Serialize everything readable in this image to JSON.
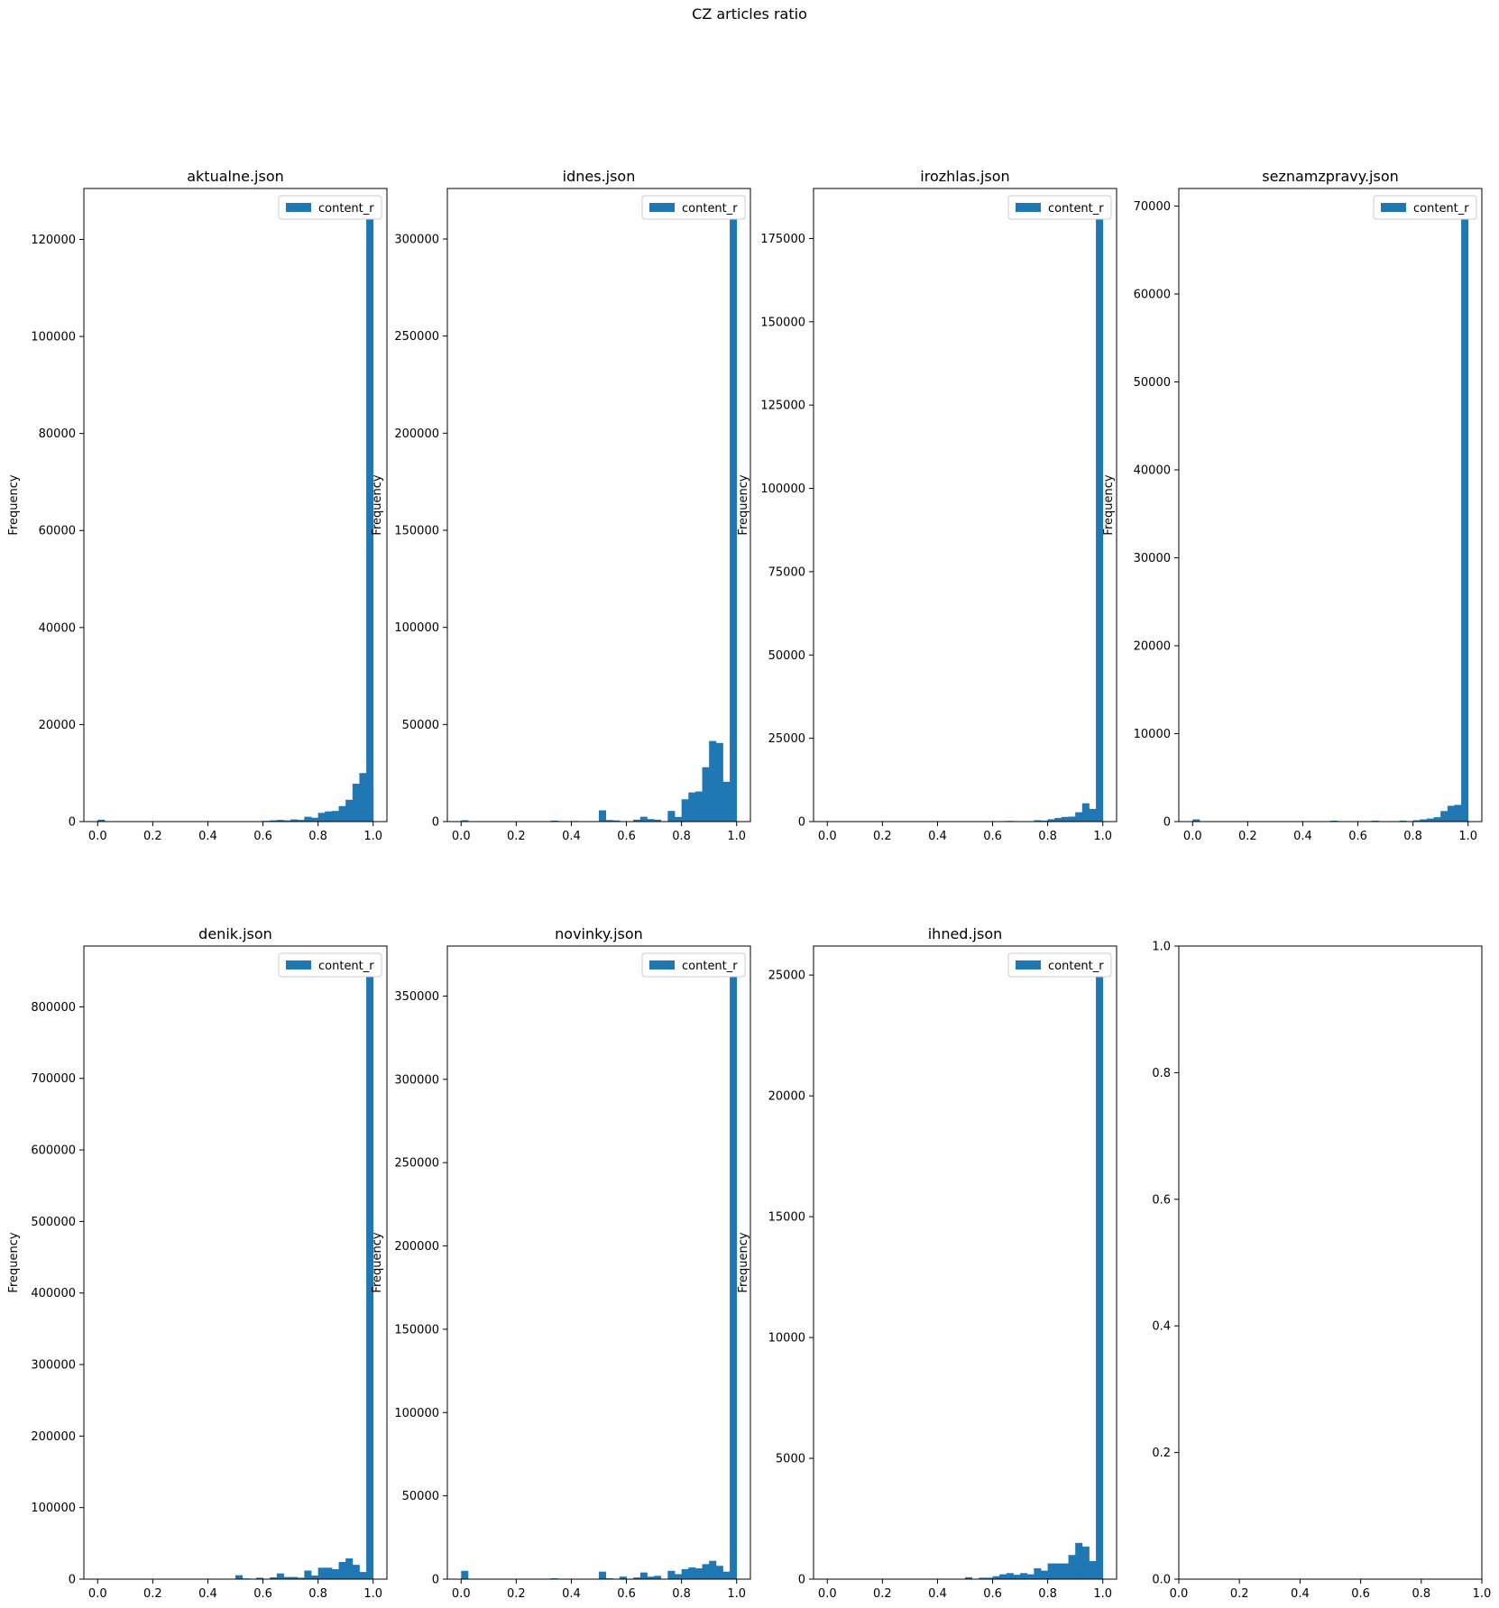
{
  "figure": {
    "title": "CZ articles ratio"
  },
  "colors": {
    "bar": "#1f77b4"
  },
  "chart_data": [
    {
      "type": "bar",
      "title": "aktualne.json",
      "ylabel": "Frequency",
      "legend": "content_r",
      "legend_placement": "top-right",
      "xlim": [
        -0.05,
        1.05
      ],
      "ylim": [
        0,
        130500
      ],
      "xticks": [
        0.0,
        0.2,
        0.4,
        0.6,
        0.8,
        1.0
      ],
      "xtick_labels": [
        "0.0",
        "0.2",
        "0.4",
        "0.6",
        "0.8",
        "1.0"
      ],
      "yticks": [
        0,
        20000,
        40000,
        60000,
        80000,
        100000,
        120000
      ],
      "ytick_labels": [
        "0",
        "20000",
        "40000",
        "60000",
        "80000",
        "100000",
        "120000"
      ],
      "bins": [
        [
          0.0,
          400
        ],
        [
          0.6,
          150
        ],
        [
          0.625,
          250
        ],
        [
          0.65,
          350
        ],
        [
          0.675,
          250
        ],
        [
          0.7,
          450
        ],
        [
          0.725,
          350
        ],
        [
          0.75,
          1000
        ],
        [
          0.775,
          800
        ],
        [
          0.8,
          1800
        ],
        [
          0.825,
          2100
        ],
        [
          0.85,
          2200
        ],
        [
          0.875,
          3200
        ],
        [
          0.9,
          4500
        ],
        [
          0.925,
          7800
        ],
        [
          0.95,
          10000
        ],
        [
          0.975,
          7500
        ],
        [
          0.975,
          125000
        ]
      ]
    },
    {
      "type": "bar",
      "title": "idnes.json",
      "ylabel": "Frequency",
      "legend": "content_r",
      "legend_placement": "top-right",
      "xlim": [
        -0.05,
        1.05
      ],
      "ylim": [
        0,
        326000
      ],
      "xticks": [
        0.0,
        0.2,
        0.4,
        0.6,
        0.8,
        1.0
      ],
      "xtick_labels": [
        "0.0",
        "0.2",
        "0.4",
        "0.6",
        "0.8",
        "1.0"
      ],
      "yticks": [
        0,
        50000,
        100000,
        150000,
        200000,
        250000,
        300000
      ],
      "ytick_labels": [
        "0",
        "50000",
        "100000",
        "150000",
        "200000",
        "250000",
        "300000"
      ],
      "bins": [
        [
          0.0,
          700
        ],
        [
          0.325,
          500
        ],
        [
          0.4,
          300
        ],
        [
          0.5,
          5800
        ],
        [
          0.525,
          800
        ],
        [
          0.55,
          600
        ],
        [
          0.625,
          1000
        ],
        [
          0.65,
          2500
        ],
        [
          0.675,
          1300
        ],
        [
          0.7,
          1000
        ],
        [
          0.75,
          5500
        ],
        [
          0.775,
          2400
        ],
        [
          0.8,
          11500
        ],
        [
          0.825,
          15000
        ],
        [
          0.85,
          15500
        ],
        [
          0.875,
          28000
        ],
        [
          0.9,
          41500
        ],
        [
          0.925,
          40500
        ],
        [
          0.95,
          20500
        ],
        [
          0.975,
          311000
        ]
      ]
    },
    {
      "type": "bar",
      "title": "irozhlas.json",
      "ylabel": "Frequency",
      "legend": "content_r",
      "legend_placement": "top-right",
      "xlim": [
        -0.05,
        1.05
      ],
      "ylim": [
        0,
        190000
      ],
      "xticks": [
        0.0,
        0.2,
        0.4,
        0.6,
        0.8,
        1.0
      ],
      "xtick_labels": [
        "0.0",
        "0.2",
        "0.4",
        "0.6",
        "0.8",
        "1.0"
      ],
      "yticks": [
        0,
        25000,
        50000,
        75000,
        100000,
        125000,
        150000,
        175000
      ],
      "ytick_labels": [
        "0",
        "25000",
        "50000",
        "75000",
        "100000",
        "125000",
        "150000",
        "175000"
      ],
      "bins": [
        [
          0.65,
          200
        ],
        [
          0.75,
          400
        ],
        [
          0.775,
          300
        ],
        [
          0.8,
          700
        ],
        [
          0.825,
          1100
        ],
        [
          0.85,
          1400
        ],
        [
          0.875,
          1500
        ],
        [
          0.9,
          2800
        ],
        [
          0.925,
          5500
        ],
        [
          0.95,
          3800
        ],
        [
          0.975,
          1400
        ],
        [
          0.975,
          181000
        ]
      ]
    },
    {
      "type": "bar",
      "title": "seznamzpravy.json",
      "ylabel": "Frequency",
      "legend": "content_r",
      "legend_placement": "top-right",
      "xlim": [
        -0.05,
        1.05
      ],
      "ylim": [
        0,
        72000
      ],
      "xticks": [
        0.0,
        0.2,
        0.4,
        0.6,
        0.8,
        1.0
      ],
      "xtick_labels": [
        "0.0",
        "0.2",
        "0.4",
        "0.6",
        "0.8",
        "1.0"
      ],
      "yticks": [
        0,
        10000,
        20000,
        30000,
        40000,
        50000,
        60000,
        70000
      ],
      "ytick_labels": [
        "0",
        "10000",
        "20000",
        "30000",
        "40000",
        "50000",
        "60000",
        "70000"
      ],
      "bins": [
        [
          0.0,
          250
        ],
        [
          0.5,
          100
        ],
        [
          0.65,
          100
        ],
        [
          0.75,
          100
        ],
        [
          0.8,
          150
        ],
        [
          0.825,
          250
        ],
        [
          0.85,
          350
        ],
        [
          0.875,
          500
        ],
        [
          0.9,
          1200
        ],
        [
          0.925,
          1800
        ],
        [
          0.95,
          1900
        ],
        [
          0.975,
          68500
        ]
      ]
    },
    {
      "type": "bar",
      "title": "denik.json",
      "ylabel": "Frequency",
      "legend": "content_r",
      "legend_placement": "top-right",
      "xlim": [
        -0.05,
        1.05
      ],
      "ylim": [
        0,
        885000
      ],
      "xticks": [
        0.0,
        0.2,
        0.4,
        0.6,
        0.8,
        1.0
      ],
      "xtick_labels": [
        "0.0",
        "0.2",
        "0.4",
        "0.6",
        "0.8",
        "1.0"
      ],
      "yticks": [
        0,
        100000,
        200000,
        300000,
        400000,
        500000,
        600000,
        700000,
        800000
      ],
      "ytick_labels": [
        "0",
        "100000",
        "200000",
        "300000",
        "400000",
        "500000",
        "600000",
        "700000",
        "800000"
      ],
      "bins": [
        [
          0.5,
          5500
        ],
        [
          0.525,
          1000
        ],
        [
          0.575,
          2000
        ],
        [
          0.625,
          2500
        ],
        [
          0.65,
          8000
        ],
        [
          0.675,
          3000
        ],
        [
          0.7,
          3000
        ],
        [
          0.725,
          2000
        ],
        [
          0.75,
          12000
        ],
        [
          0.775,
          5000
        ],
        [
          0.8,
          16000
        ],
        [
          0.825,
          16000
        ],
        [
          0.85,
          14000
        ],
        [
          0.875,
          24000
        ],
        [
          0.9,
          29000
        ],
        [
          0.925,
          20000
        ],
        [
          0.95,
          10000
        ],
        [
          0.975,
          845000
        ]
      ]
    },
    {
      "type": "bar",
      "title": "novinky.json",
      "ylabel": "Frequency",
      "legend": "content_r",
      "legend_placement": "top-right",
      "xlim": [
        -0.05,
        1.05
      ],
      "ylim": [
        0,
        380000
      ],
      "xticks": [
        0.0,
        0.2,
        0.4,
        0.6,
        0.8,
        1.0
      ],
      "xtick_labels": [
        "0.0",
        "0.2",
        "0.4",
        "0.6",
        "0.8",
        "1.0"
      ],
      "yticks": [
        0,
        50000,
        100000,
        150000,
        200000,
        250000,
        300000,
        350000
      ],
      "ytick_labels": [
        "0",
        "50000",
        "100000",
        "150000",
        "200000",
        "250000",
        "300000",
        "350000"
      ],
      "bins": [
        [
          0.0,
          5000
        ],
        [
          0.325,
          500
        ],
        [
          0.5,
          4500
        ],
        [
          0.525,
          500
        ],
        [
          0.575,
          1500
        ],
        [
          0.625,
          1000
        ],
        [
          0.65,
          4000
        ],
        [
          0.675,
          1500
        ],
        [
          0.7,
          2000
        ],
        [
          0.75,
          5000
        ],
        [
          0.775,
          3000
        ],
        [
          0.8,
          6000
        ],
        [
          0.825,
          7000
        ],
        [
          0.85,
          6500
        ],
        [
          0.875,
          9000
        ],
        [
          0.9,
          11000
        ],
        [
          0.925,
          8000
        ],
        [
          0.95,
          4500
        ],
        [
          0.975,
          363000
        ]
      ]
    },
    {
      "type": "bar",
      "title": "ihned.json",
      "ylabel": "Frequency",
      "legend": "content_r",
      "legend_placement": "top-right",
      "xlim": [
        -0.05,
        1.05
      ],
      "ylim": [
        0,
        26200
      ],
      "xticks": [
        0.0,
        0.2,
        0.4,
        0.6,
        0.8,
        1.0
      ],
      "xtick_labels": [
        "0.0",
        "0.2",
        "0.4",
        "0.6",
        "0.8",
        "1.0"
      ],
      "yticks": [
        0,
        5000,
        10000,
        15000,
        20000,
        25000
      ],
      "ytick_labels": [
        "0",
        "5000",
        "10000",
        "15000",
        "20000",
        "25000"
      ],
      "bins": [
        [
          0.5,
          80
        ],
        [
          0.55,
          60
        ],
        [
          0.575,
          60
        ],
        [
          0.6,
          120
        ],
        [
          0.625,
          200
        ],
        [
          0.65,
          250
        ],
        [
          0.675,
          180
        ],
        [
          0.7,
          250
        ],
        [
          0.725,
          200
        ],
        [
          0.75,
          450
        ],
        [
          0.775,
          350
        ],
        [
          0.8,
          650
        ],
        [
          0.825,
          650
        ],
        [
          0.85,
          650
        ],
        [
          0.875,
          1000
        ],
        [
          0.9,
          1500
        ],
        [
          0.925,
          1350
        ],
        [
          0.95,
          750
        ],
        [
          0.975,
          25000
        ]
      ]
    },
    {
      "type": "bar",
      "title": "",
      "ylabel": "",
      "legend": "",
      "legend_placement": "",
      "xlim": [
        0,
        1
      ],
      "ylim": [
        0,
        1
      ],
      "xticks": [
        0.0,
        0.2,
        0.4,
        0.6,
        0.8,
        1.0
      ],
      "xtick_labels": [
        "0.0",
        "0.2",
        "0.4",
        "0.6",
        "0.8",
        "1.0"
      ],
      "yticks": [
        0.0,
        0.2,
        0.4,
        0.6,
        0.8,
        1.0
      ],
      "ytick_labels": [
        "0.0",
        "0.2",
        "0.4",
        "0.6",
        "0.8",
        "1.0"
      ],
      "bins": []
    }
  ]
}
